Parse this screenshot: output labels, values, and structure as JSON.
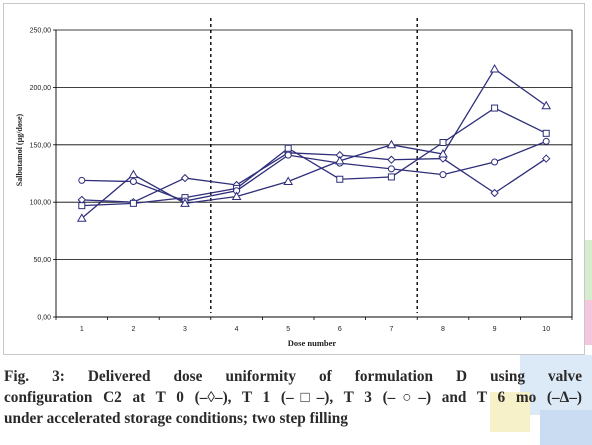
{
  "decoration_colors": {
    "panel_border": "#c8c8c8",
    "right_strip_green": "#d8ecd0",
    "right_strip_yellow": "#f3f0c4",
    "right_strip_blue": "#c9dcf1",
    "right_strip_pink": "#f5c7de",
    "caption_backdrop_blue": "#dce9f7",
    "caption_backdrop_yellow": "#f6f1c8"
  },
  "chart_data": {
    "type": "line",
    "title": "",
    "xlabel": "Dose number",
    "ylabel": "Salbutamol (µg/dose)",
    "categories": [
      "1",
      "2",
      "3",
      "4",
      "5",
      "6",
      "7",
      "8",
      "9",
      "10"
    ],
    "y_ticks": [
      "0,00",
      "50,00",
      "100,00",
      "150,00",
      "200,00",
      "250,00"
    ],
    "ylim": [
      0,
      250
    ],
    "grid": "horizontal",
    "legend": "none",
    "line_color": "#2e2e7a",
    "vertical_markers_between_doses": [
      [
        3,
        4
      ],
      [
        7,
        8
      ]
    ],
    "series": [
      {
        "marker": "diamond",
        "values": [
          102,
          100,
          121,
          115,
          143,
          141,
          137,
          138,
          108,
          138
        ]
      },
      {
        "marker": "square",
        "values": [
          97,
          99,
          104,
          112,
          147,
          120,
          122,
          152,
          182,
          160
        ]
      },
      {
        "marker": "circle",
        "values": [
          119,
          118,
          101,
          110,
          141,
          134,
          129,
          124,
          135,
          153
        ]
      },
      {
        "marker": "triangle",
        "values": [
          86,
          124,
          99,
          105,
          118,
          136,
          150,
          142,
          216,
          184
        ]
      }
    ]
  },
  "caption": {
    "line1": "Fig. 3: Delivered dose uniformity of formulation D using valve",
    "line2": "configuration C2 at T 0 (–◊–), T 1 (–□–), T 3 (–○–) and T 6 mo (–Δ–)",
    "line3": "under accelerated storage conditions; two step filling"
  }
}
